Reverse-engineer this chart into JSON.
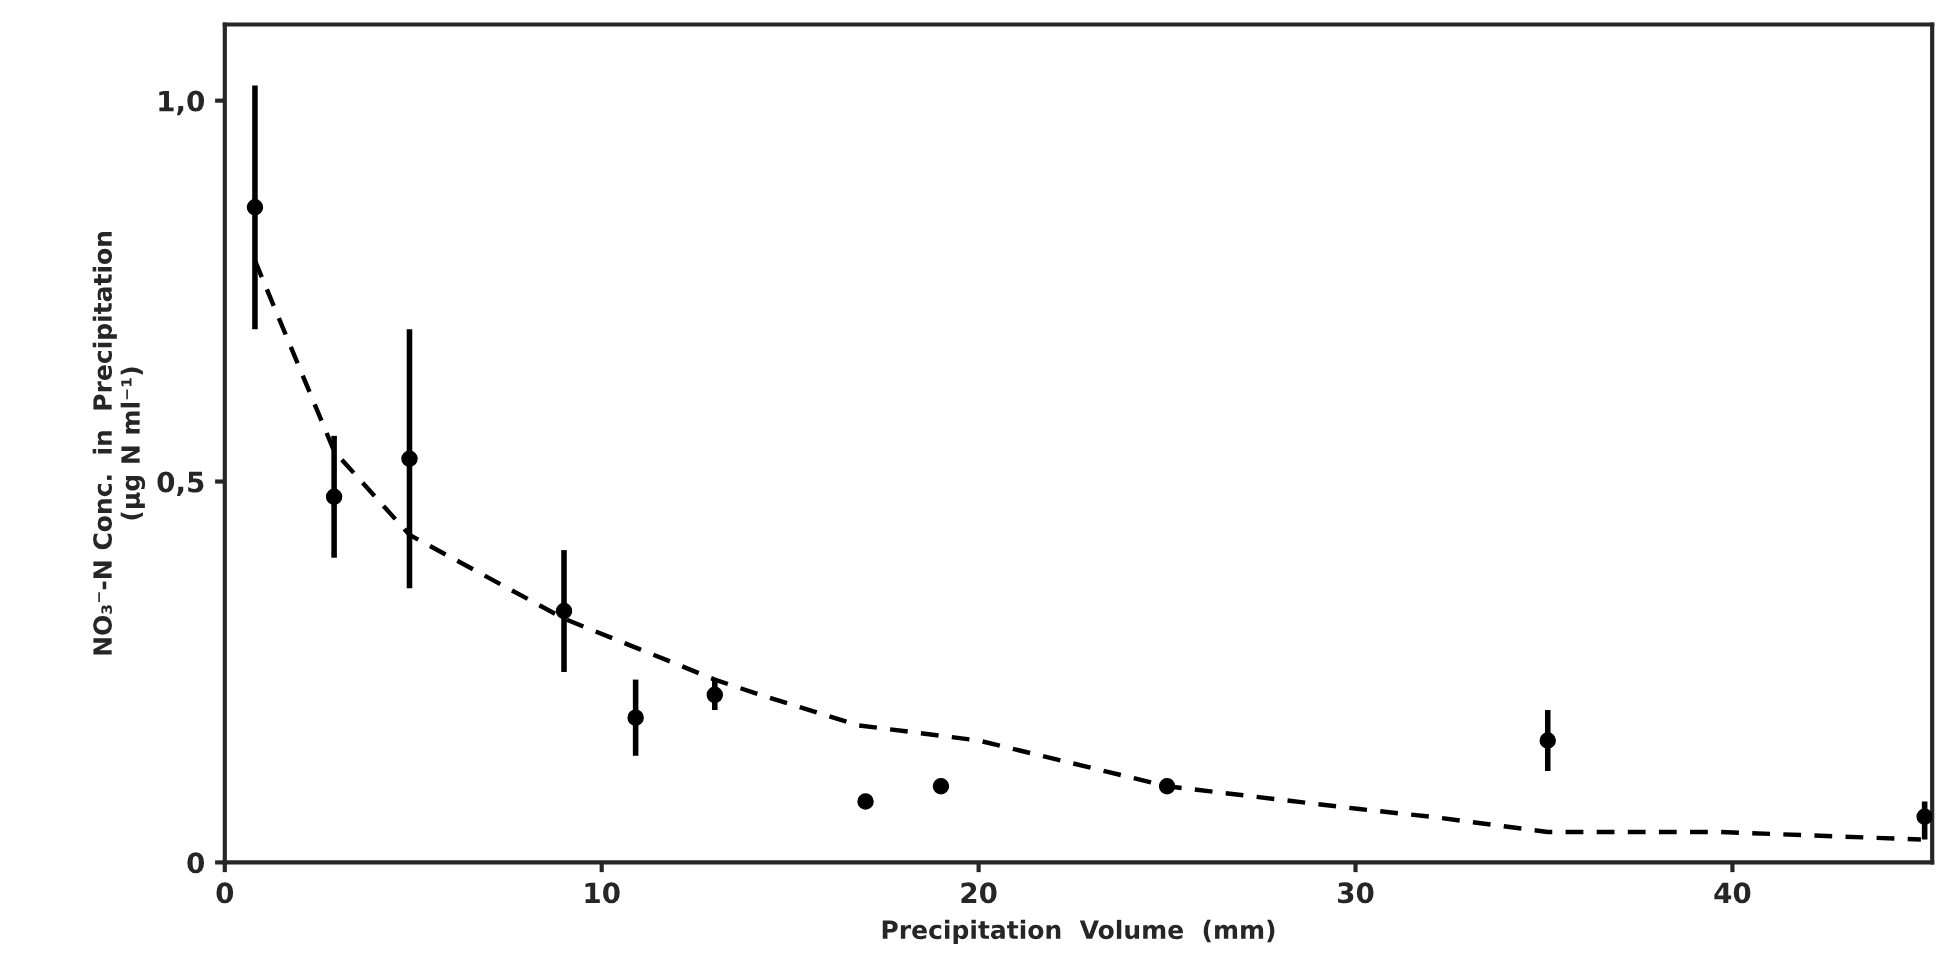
{
  "chart_data": {
    "type": "scatter",
    "xlabel": "Precipitation  Volume  (mm)",
    "ylabel": "NO₃⁻-N Conc.  in  Precipitation\n(µg N ml⁻¹)",
    "xlim": [
      0,
      45.3
    ],
    "xticks": [
      0,
      10,
      20,
      30,
      40
    ],
    "ylim": [
      0,
      1.1
    ],
    "yticks": [
      {
        "value": 0,
        "label": "0"
      },
      {
        "value": 0.5,
        "label": "0,5"
      },
      {
        "value": 1.0,
        "label": "1,0"
      }
    ],
    "grid": false,
    "marker": "circle",
    "series": [
      {
        "color": "#000000",
        "x": [
          0.8,
          2.9,
          4.9,
          9.0,
          10.9,
          13.0,
          17.0,
          19.0,
          25.0,
          35.1,
          45.1
        ],
        "values": [
          0.86,
          0.48,
          0.53,
          0.33,
          0.19,
          0.22,
          0.08,
          0.1,
          0.1,
          0.16,
          0.06
        ],
        "errors": [
          [
            0.7,
            1.02
          ],
          [
            0.4,
            0.56
          ],
          [
            0.36,
            0.7
          ],
          [
            0.25,
            0.41
          ],
          [
            0.14,
            0.24
          ],
          [
            0.2,
            0.24
          ],
          null,
          null,
          null,
          [
            0.12,
            0.2
          ],
          [
            0.03,
            0.08
          ]
        ]
      },
      {
        "type": "line",
        "color": "#000000",
        "line_style": "dashed",
        "marker": "none",
        "x": [
          0.8,
          2.9,
          4.9,
          9.0,
          11.0,
          13.0,
          14.2,
          16.8,
          20.0,
          25.0,
          30.1,
          32.0,
          35.1,
          39.6,
          45.0
        ],
        "values": [
          0.79,
          0.54,
          0.43,
          0.32,
          0.28,
          0.24,
          0.22,
          0.18,
          0.16,
          0.1,
          0.07,
          0.06,
          0.04,
          0.04,
          0.03
        ]
      }
    ]
  }
}
